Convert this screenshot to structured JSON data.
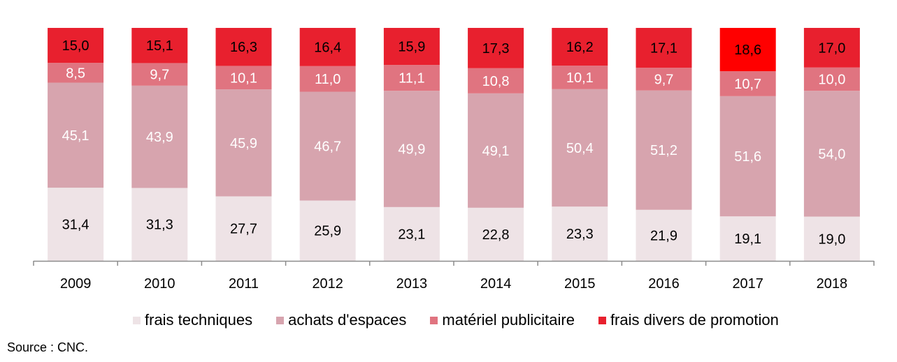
{
  "chart_data": {
    "type": "bar",
    "stacked": true,
    "normalized_percent": true,
    "categories": [
      "2009",
      "2010",
      "2011",
      "2012",
      "2013",
      "2014",
      "2015",
      "2016",
      "2017",
      "2018"
    ],
    "series": [
      {
        "name": "frais techniques",
        "color": "#eee3e6",
        "text_color": "#000000",
        "values": [
          31.4,
          31.3,
          27.7,
          25.9,
          23.1,
          22.8,
          23.3,
          21.9,
          19.1,
          19.0
        ],
        "labels": [
          "31,4",
          "31,3",
          "27,7",
          "25,9",
          "23,1",
          "22,8",
          "23,3",
          "21,9",
          "19,1",
          "19,0"
        ]
      },
      {
        "name": "achats d'espaces",
        "color": "#d7a4ae",
        "text_color": "#ffffff",
        "values": [
          45.1,
          43.9,
          45.9,
          46.7,
          49.9,
          49.1,
          50.4,
          51.2,
          51.6,
          54.0
        ],
        "labels": [
          "45,1",
          "43,9",
          "45,9",
          "46,7",
          "49,9",
          "49,1",
          "50,4",
          "51,2",
          "51,6",
          "54,0"
        ]
      },
      {
        "name": "matériel publicitaire",
        "color": "#e07480",
        "text_color": "#ffffff",
        "values": [
          8.5,
          9.7,
          10.1,
          11.0,
          11.1,
          10.8,
          10.1,
          9.7,
          10.7,
          10.0
        ],
        "labels": [
          "8,5",
          "9,7",
          "10,1",
          "11,0",
          "11,1",
          "10,8",
          "10,1",
          "9,7",
          "10,7",
          "10,0"
        ]
      },
      {
        "name": "frais divers de promotion",
        "color": "#e8202e",
        "text_color": "#000000",
        "values": [
          15.0,
          15.1,
          16.3,
          16.4,
          15.9,
          17.3,
          16.2,
          17.1,
          18.6,
          17.0
        ],
        "labels": [
          "15,0",
          "15,1",
          "16,3",
          "16,4",
          "15,9",
          "17,3",
          "16,2",
          "17,1",
          "18,6",
          "17,0"
        ]
      }
    ],
    "highlight": {
      "category": "2017",
      "series": "frais divers de promotion",
      "color": "#ff0000"
    },
    "title": "",
    "xlabel": "",
    "ylabel": "",
    "legend_position": "bottom",
    "source": "Source : CNC."
  }
}
